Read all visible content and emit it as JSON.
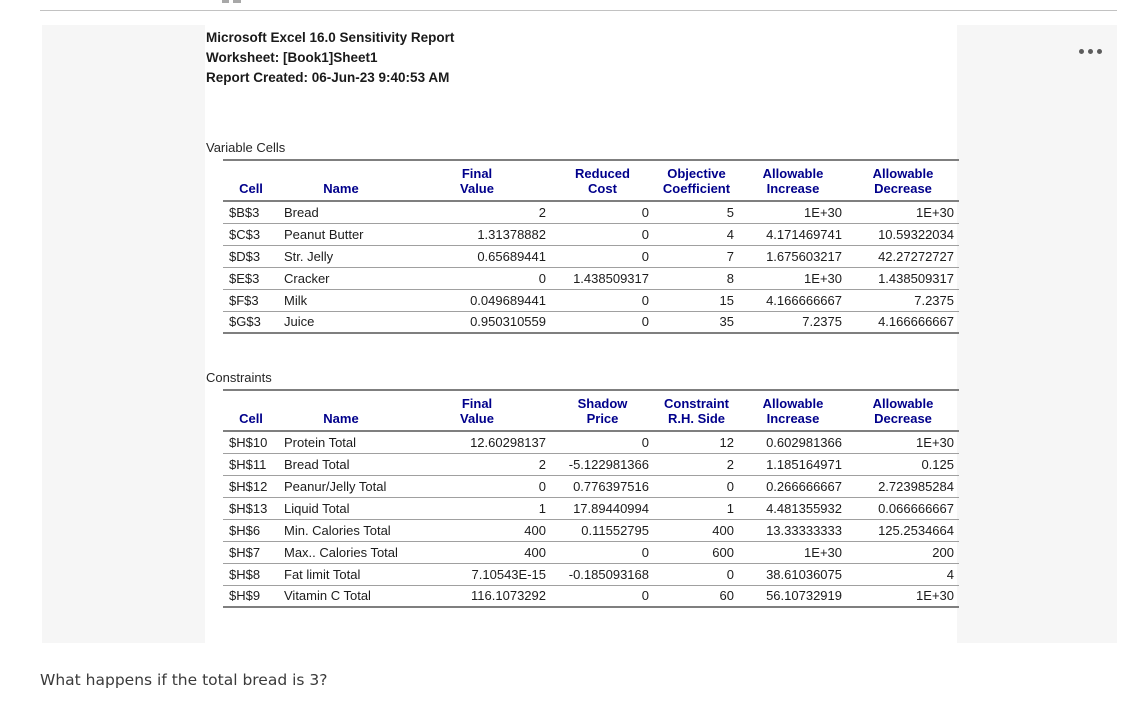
{
  "report": {
    "title": "Microsoft Excel 16.0 Sensitivity Report",
    "worksheet": "Worksheet: [Book1]Sheet1",
    "created": "Report Created: 06-Jun-23 9:40:53 AM"
  },
  "variable_cells": {
    "section_label": "Variable Cells",
    "headers": [
      [
        "",
        "Cell"
      ],
      [
        "",
        "Name"
      ],
      [
        "Final",
        "Value"
      ],
      [
        "Reduced",
        "Cost"
      ],
      [
        "Objective",
        "Coefficient"
      ],
      [
        "Allowable",
        "Increase"
      ],
      [
        "Allowable",
        "Decrease"
      ]
    ],
    "rows": [
      [
        "$B$3",
        "Bread",
        "2",
        "0",
        "5",
        "1E+30",
        "1E+30"
      ],
      [
        "$C$3",
        "Peanut Butter",
        "1.31378882",
        "0",
        "4",
        "4.171469741",
        "10.59322034"
      ],
      [
        "$D$3",
        "Str. Jelly",
        "0.65689441",
        "0",
        "7",
        "1.675603217",
        "42.27272727"
      ],
      [
        "$E$3",
        "Cracker",
        "0",
        "1.438509317",
        "8",
        "1E+30",
        "1.438509317"
      ],
      [
        "$F$3",
        "Milk",
        "0.049689441",
        "0",
        "15",
        "4.166666667",
        "7.2375"
      ],
      [
        "$G$3",
        "Juice",
        "0.950310559",
        "0",
        "35",
        "7.2375",
        "4.166666667"
      ]
    ]
  },
  "constraints": {
    "section_label": "Constraints",
    "headers": [
      [
        "",
        "Cell"
      ],
      [
        "",
        "Name"
      ],
      [
        "Final",
        "Value"
      ],
      [
        "Shadow",
        "Price"
      ],
      [
        "Constraint",
        "R.H. Side"
      ],
      [
        "Allowable",
        "Increase"
      ],
      [
        "Allowable",
        "Decrease"
      ]
    ],
    "rows": [
      [
        "$H$10",
        "Protein Total",
        "12.60298137",
        "0",
        "12",
        "0.602981366",
        "1E+30"
      ],
      [
        "$H$11",
        "Bread Total",
        "2",
        "-5.122981366",
        "2",
        "1.185164971",
        "0.125"
      ],
      [
        "$H$12",
        "Peanur/Jelly Total",
        "0",
        "0.776397516",
        "0",
        "0.266666667",
        "2.723985284"
      ],
      [
        "$H$13",
        "Liquid Total",
        "1",
        "17.89440994",
        "1",
        "4.481355932",
        "0.066666667"
      ],
      [
        "$H$6",
        "Min. Calories Total",
        "400",
        "0.11552795",
        "400",
        "13.33333333",
        "125.2534664"
      ],
      [
        "$H$7",
        "Max.. Calories Total",
        "400",
        "0",
        "600",
        "1E+30",
        "200"
      ],
      [
        "$H$8",
        "Fat limit Total",
        "7.10543E-15",
        "-0.185093168",
        "0",
        "38.61036075",
        "4"
      ],
      [
        "$H$9",
        "Vitamin C Total",
        "116.1073292",
        "0",
        "60",
        "56.10732919",
        "1E+30"
      ]
    ]
  },
  "more_button": {
    "label": "more options"
  },
  "question": "What happens if the total bread is 3?",
  "colors": {
    "header_blue": "#00008B",
    "border_strong": "#7f7f7f",
    "border_thin": "#a0a0a0",
    "card_bg": "#f6f6f6"
  }
}
